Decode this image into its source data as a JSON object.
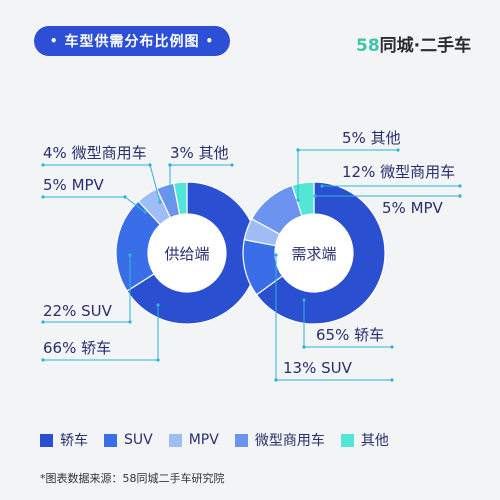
{
  "header": {
    "title": "车型供需分布比例图",
    "brand_number": "58",
    "brand_text": "同城·二手车"
  },
  "colors": {
    "accent": "#2c4fd6",
    "label_text": "#2a2f6e",
    "leader_line": "#29b6d6",
    "brand_green": "#3fc6a8"
  },
  "chart_data": [
    {
      "type": "donut",
      "center_label": "供给端",
      "slices": [
        {
          "name": "轿车",
          "value": 66,
          "label": "66% 轿车",
          "color": "#2a4fd0"
        },
        {
          "name": "SUV",
          "value": 22,
          "label": "22% SUV",
          "color": "#3a6ee8"
        },
        {
          "name": "MPV",
          "value": 5,
          "label": "5% MPV",
          "color": "#9fbdf5"
        },
        {
          "name": "微型商用车",
          "value": 4,
          "label": "4% 微型商用车",
          "color": "#6b93ef"
        },
        {
          "name": "其他",
          "value": 3,
          "label": "3% 其他",
          "color": "#52e5d8"
        }
      ]
    },
    {
      "type": "donut",
      "center_label": "需求端",
      "slices": [
        {
          "name": "轿车",
          "value": 65,
          "label": "65% 轿车",
          "color": "#2a4fd0"
        },
        {
          "name": "SUV",
          "value": 13,
          "label": "13% SUV",
          "color": "#3a6ee8"
        },
        {
          "name": "MPV",
          "value": 5,
          "label": "5% MPV",
          "color": "#9fbdf5"
        },
        {
          "name": "微型商用车",
          "value": 12,
          "label": "12% 微型商用车",
          "color": "#6b93ef"
        },
        {
          "name": "其他",
          "value": 5,
          "label": "5% 其他",
          "color": "#52e5d8"
        }
      ]
    }
  ],
  "legend": [
    {
      "label": "轿车",
      "color": "#2a4fd0"
    },
    {
      "label": "SUV",
      "color": "#3a6ee8"
    },
    {
      "label": "MPV",
      "color": "#9fbdf5"
    },
    {
      "label": "微型商用车",
      "color": "#6b93ef"
    },
    {
      "label": "其他",
      "color": "#52e5d8"
    }
  ],
  "footer": {
    "source": "*图表数据来源：58同城二手车研究院"
  }
}
